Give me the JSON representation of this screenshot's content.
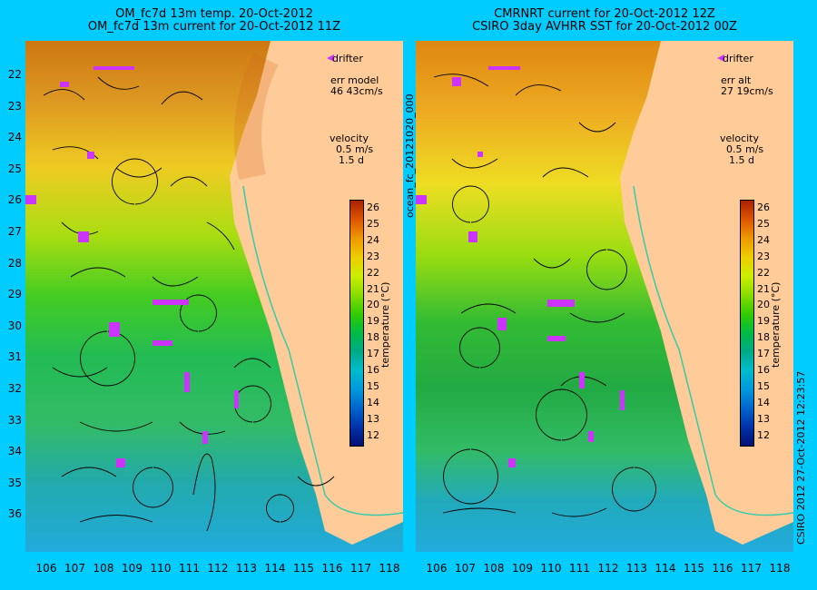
{
  "left_panel": {
    "title_line1": "OM_fc7d 13m temp. 20-Oct-2012",
    "title_line2": "OM_fc7d 13m current for 20-Oct-2012 11Z",
    "legend_drifter": "drifter",
    "err_label": "err model",
    "err_value": "46 43cm/s",
    "velocity_label": "velocity",
    "velocity_scale": "0.5 m/s",
    "velocity_days": "1.5 d"
  },
  "right_panel": {
    "title_line1": "CMRNRT current for 20-Oct-2012 12Z",
    "title_line2": "CSIRO 3day AVHRR SST for 20-Oct-2012 00Z",
    "legend_drifter": "drifter",
    "err_label": "err alt",
    "err_value": "27 19cm/s",
    "velocity_label": "velocity",
    "velocity_scale": "0.5 m/s",
    "velocity_days": "1.5 d"
  },
  "colorbar": {
    "label": "temperature (°C)",
    "ticks": [
      "26",
      "25",
      "24",
      "23",
      "22",
      "21",
      "20",
      "19",
      "18",
      "17",
      "16",
      "15",
      "14",
      "13",
      "12"
    ]
  },
  "axes": {
    "lat_ticks": [
      "22",
      "23",
      "24",
      "25",
      "26",
      "27",
      "28",
      "29",
      "30",
      "31",
      "32",
      "33",
      "34",
      "35",
      "36"
    ],
    "lon_ticks": [
      "106",
      "107",
      "108",
      "109",
      "110",
      "111",
      "112",
      "113",
      "114",
      "115",
      "116",
      "117",
      "118"
    ]
  },
  "side_labels": {
    "middle": "ocean_fc_20121020_000",
    "right": "CSIRO 2012   27-Oct-2012 12:23:57"
  },
  "colors": {
    "background": "#00ccff",
    "land": "#ffcc99",
    "drifter": "#cc33ff",
    "coast_current": "#33ccaa"
  }
}
